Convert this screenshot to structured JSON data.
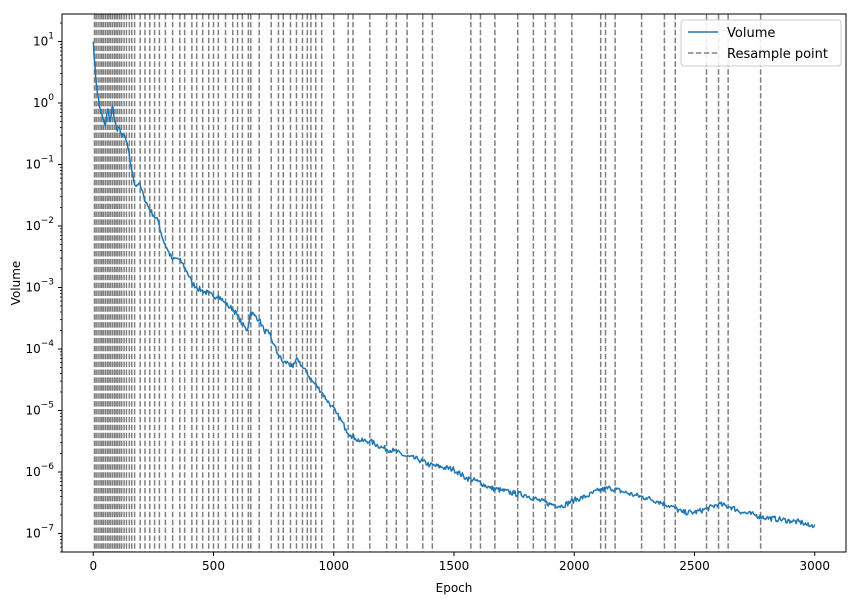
{
  "chart_data": {
    "type": "line",
    "title": "",
    "xlabel": "Epoch",
    "ylabel": "Volume",
    "xlim": [
      -130,
      3130
    ],
    "ylim": [
      5e-08,
      28
    ],
    "yscale": "log",
    "grid": false,
    "legend_position": "top-right",
    "x_ticks": [
      0,
      500,
      1000,
      1500,
      2000,
      2500,
      3000
    ],
    "x_tick_labels": [
      "0",
      "500",
      "1000",
      "1500",
      "2000",
      "2500",
      "3000"
    ],
    "y_ticks": [
      1e-07,
      1e-06,
      1e-05,
      0.0001,
      0.001,
      0.01,
      0.1,
      1,
      10
    ],
    "y_tick_labels": [
      {
        "base": "10",
        "exp": "−7"
      },
      {
        "base": "10",
        "exp": "−6"
      },
      {
        "base": "10",
        "exp": "−5"
      },
      {
        "base": "10",
        "exp": "−4"
      },
      {
        "base": "10",
        "exp": "−3"
      },
      {
        "base": "10",
        "exp": "−2"
      },
      {
        "base": "10",
        "exp": "−1"
      },
      {
        "base": "10",
        "exp": "0"
      },
      {
        "base": "10",
        "exp": "1"
      }
    ],
    "series": [
      {
        "name": "Volume",
        "color": "#1f77b4",
        "style": "solid",
        "points": [
          [
            0,
            10
          ],
          [
            10,
            2.5
          ],
          [
            25,
            0.9
          ],
          [
            40,
            0.55
          ],
          [
            50,
            0.42
          ],
          [
            60,
            0.8
          ],
          [
            70,
            0.5
          ],
          [
            80,
            0.9
          ],
          [
            90,
            0.5
          ],
          [
            100,
            0.35
          ],
          [
            110,
            0.4
          ],
          [
            120,
            0.28
          ],
          [
            130,
            0.3
          ],
          [
            145,
            0.18
          ],
          [
            160,
            0.08
          ],
          [
            175,
            0.045
          ],
          [
            190,
            0.05
          ],
          [
            210,
            0.03
          ],
          [
            230,
            0.02
          ],
          [
            250,
            0.015
          ],
          [
            270,
            0.012
          ],
          [
            290,
            0.006
          ],
          [
            310,
            0.004
          ],
          [
            330,
            0.0028
          ],
          [
            350,
            0.003
          ],
          [
            370,
            0.0025
          ],
          [
            390,
            0.0018
          ],
          [
            410,
            0.0012
          ],
          [
            430,
            0.001
          ],
          [
            450,
            0.0009
          ],
          [
            480,
            0.0008
          ],
          [
            500,
            0.0007
          ],
          [
            520,
            0.00075
          ],
          [
            540,
            0.0006
          ],
          [
            560,
            0.0005
          ],
          [
            580,
            0.00045
          ],
          [
            600,
            0.00035
          ],
          [
            620,
            0.00025
          ],
          [
            640,
            0.0002
          ],
          [
            655,
            0.0004
          ],
          [
            670,
            0.00035
          ],
          [
            690,
            0.0003
          ],
          [
            710,
            0.0002
          ],
          [
            730,
            0.00018
          ],
          [
            750,
            0.00012
          ],
          [
            770,
            8e-05
          ],
          [
            790,
            6e-05
          ],
          [
            810,
            6e-05
          ],
          [
            830,
            5e-05
          ],
          [
            850,
            7e-05
          ],
          [
            870,
            5e-05
          ],
          [
            890,
            4e-05
          ],
          [
            910,
            3e-05
          ],
          [
            930,
            2.5e-05
          ],
          [
            950,
            2e-05
          ],
          [
            970,
            1.5e-05
          ],
          [
            990,
            1.2e-05
          ],
          [
            1010,
            9e-06
          ],
          [
            1030,
            7e-06
          ],
          [
            1050,
            5e-06
          ],
          [
            1070,
            4e-06
          ],
          [
            1090,
            3.5e-06
          ],
          [
            1110,
            3.2e-06
          ],
          [
            1150,
            3.2e-06
          ],
          [
            1200,
            2.5e-06
          ],
          [
            1250,
            2.2e-06
          ],
          [
            1300,
            1.8e-06
          ],
          [
            1350,
            1.6e-06
          ],
          [
            1400,
            1.3e-06
          ],
          [
            1450,
            1.2e-06
          ],
          [
            1500,
            1.1e-06
          ],
          [
            1550,
            8e-07
          ],
          [
            1600,
            7e-07
          ],
          [
            1650,
            5.5e-07
          ],
          [
            1700,
            5e-07
          ],
          [
            1750,
            4.5e-07
          ],
          [
            1800,
            4.2e-07
          ],
          [
            1850,
            3.5e-07
          ],
          [
            1900,
            3e-07
          ],
          [
            1950,
            2.8e-07
          ],
          [
            2000,
            3.5e-07
          ],
          [
            2050,
            4e-07
          ],
          [
            2100,
            5e-07
          ],
          [
            2150,
            5.5e-07
          ],
          [
            2200,
            4.8e-07
          ],
          [
            2250,
            4.2e-07
          ],
          [
            2300,
            3.8e-07
          ],
          [
            2350,
            3.3e-07
          ],
          [
            2400,
            2.8e-07
          ],
          [
            2450,
            2.2e-07
          ],
          [
            2500,
            2.2e-07
          ],
          [
            2550,
            2.5e-07
          ],
          [
            2600,
            3e-07
          ],
          [
            2650,
            2.7e-07
          ],
          [
            2700,
            2.2e-07
          ],
          [
            2750,
            2e-07
          ],
          [
            2800,
            1.8e-07
          ],
          [
            2850,
            1.7e-07
          ],
          [
            2900,
            1.6e-07
          ],
          [
            2950,
            1.5e-07
          ],
          [
            2980,
            1.3e-07
          ],
          [
            3000,
            1.4e-07
          ]
        ]
      },
      {
        "name": "Resample point",
        "color": "#808080",
        "style": "dashed",
        "x": [
          5,
          12,
          20,
          28,
          35,
          42,
          50,
          58,
          65,
          72,
          80,
          88,
          95,
          102,
          110,
          118,
          128,
          138,
          150,
          160,
          172,
          195,
          215,
          235,
          255,
          275,
          300,
          330,
          360,
          380,
          410,
          430,
          455,
          480,
          500,
          520,
          550,
          580,
          600,
          620,
          645,
          655,
          690,
          740,
          770,
          790,
          820,
          845,
          870,
          890,
          905,
          925,
          950,
          1000,
          1060,
          1080,
          1150,
          1220,
          1260,
          1305,
          1370,
          1410,
          1570,
          1610,
          1670,
          1765,
          1830,
          1880,
          1920,
          1990,
          2110,
          2130,
          2170,
          2280,
          2375,
          2420,
          2550,
          2600,
          2640,
          2775
        ]
      }
    ]
  }
}
